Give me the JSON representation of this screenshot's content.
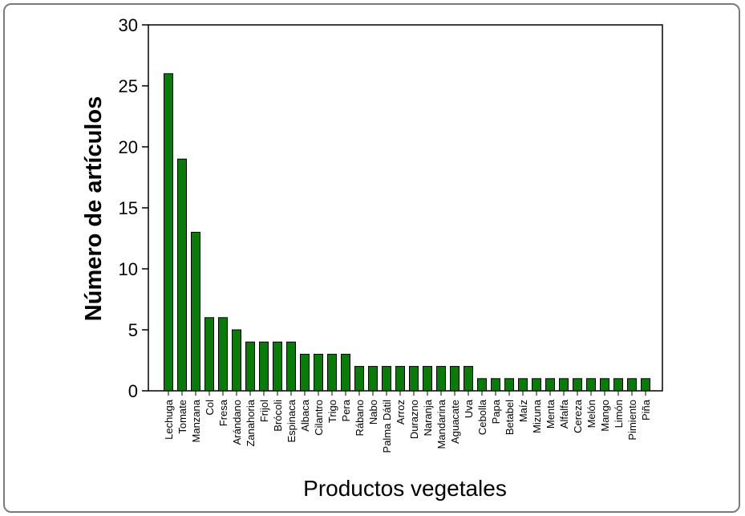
{
  "chart_data": {
    "type": "bar",
    "title": "",
    "xlabel": "Productos vegetales",
    "ylabel": "Número de artículos",
    "ylim": [
      0,
      30
    ],
    "yticks": [
      0,
      5,
      10,
      15,
      20,
      25,
      30
    ],
    "grid": false,
    "bar_color": "#0a7a0a",
    "categories": [
      "Lechuga",
      "Tomate",
      "Manzana",
      "Col",
      "Fresa",
      "Arándano",
      "Zanahoria",
      "Frijol",
      "Brócoli",
      "Espinaca",
      "Albaca",
      "Cilantro",
      "Trigo",
      "Pera",
      "Rábano",
      "Nabo",
      "Palma Dátil",
      "Arroz",
      "Durazno",
      "Naranja",
      "Mandarina",
      "Aguacate",
      "Uva",
      "Cebolla",
      "Papa",
      "Betabel",
      "Maíz",
      "Mizuna",
      "Menta",
      "Alfalfa",
      "Cereza",
      "Melón",
      "Mango",
      "Limón",
      "Pimiento",
      "Piña"
    ],
    "values": [
      26,
      19,
      13,
      6,
      6,
      5,
      4,
      4,
      4,
      4,
      3,
      3,
      3,
      3,
      2,
      2,
      2,
      2,
      2,
      2,
      2,
      2,
      2,
      1,
      1,
      1,
      1,
      1,
      1,
      1,
      1,
      1,
      1,
      1,
      1,
      1
    ]
  }
}
